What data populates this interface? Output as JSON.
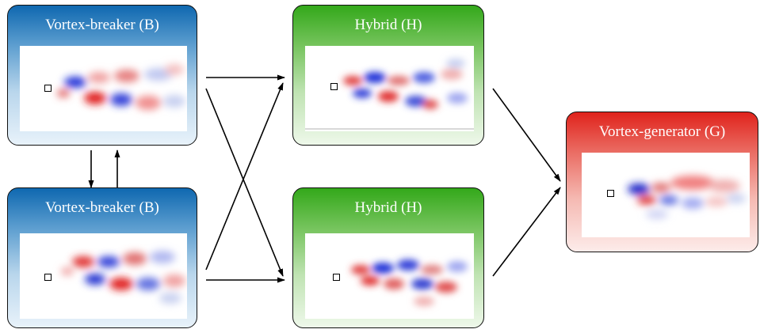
{
  "panels": {
    "b1": {
      "title": "Vortex-breaker (B)"
    },
    "b2": {
      "title": "Vortex-breaker (B)"
    },
    "h1": {
      "title": "Hybrid (H)"
    },
    "h2": {
      "title": "Hybrid (H)"
    },
    "g": {
      "title": "Vortex-generator (G)"
    }
  },
  "colors": {
    "blue_header": "#0f68b0",
    "green_header": "#33a81a",
    "red_header": "#e0231c",
    "positive_vorticity": "#d42020",
    "negative_vorticity": "#1f2fcf",
    "arrow": "#000000"
  }
}
